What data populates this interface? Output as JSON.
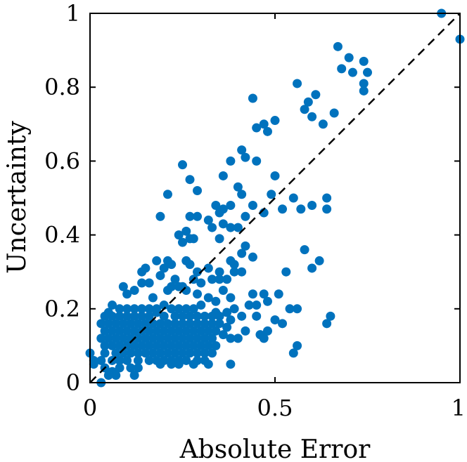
{
  "chart_data": {
    "type": "scatter",
    "title": "",
    "xlabel": "Absolute Error",
    "ylabel": "Uncertainty",
    "xlim": [
      0,
      1
    ],
    "ylim": [
      0,
      1
    ],
    "xticks": [
      0,
      0.5,
      1
    ],
    "xtick_labels": [
      "0",
      "0.5",
      "1"
    ],
    "yticks": [
      0,
      0.2,
      0.4,
      0.6,
      0.8,
      1
    ],
    "ytick_labels": [
      "0",
      "0.2",
      "0.4",
      "0.6",
      "0.8",
      "1"
    ],
    "grid": false,
    "box": true,
    "reference_line": {
      "style": "dashed",
      "color": "#000000",
      "from": [
        0,
        0
      ],
      "to": [
        1,
        1
      ]
    },
    "point_color": "#0072BD",
    "series": [
      {
        "points": [
          [
            0.95,
            1.0
          ],
          [
            1.0,
            0.93
          ],
          [
            0.67,
            0.91
          ],
          [
            0.7,
            0.88
          ],
          [
            0.74,
            0.87
          ],
          [
            0.75,
            0.84
          ],
          [
            0.71,
            0.84
          ],
          [
            0.68,
            0.85
          ],
          [
            0.74,
            0.81
          ],
          [
            0.74,
            0.79
          ],
          [
            0.56,
            0.81
          ],
          [
            0.61,
            0.78
          ],
          [
            0.59,
            0.76
          ],
          [
            0.66,
            0.73
          ],
          [
            0.58,
            0.74
          ],
          [
            0.63,
            0.7
          ],
          [
            0.6,
            0.72
          ],
          [
            0.47,
            0.7
          ],
          [
            0.5,
            0.71
          ],
          [
            0.45,
            0.69
          ],
          [
            0.48,
            0.68
          ],
          [
            0.44,
            0.77
          ],
          [
            0.45,
            0.6
          ],
          [
            0.41,
            0.63
          ],
          [
            0.42,
            0.61
          ],
          [
            0.25,
            0.59
          ],
          [
            0.38,
            0.6
          ],
          [
            0.36,
            0.56
          ],
          [
            0.5,
            0.56
          ],
          [
            0.4,
            0.53
          ],
          [
            0.41,
            0.51
          ],
          [
            0.49,
            0.51
          ],
          [
            0.27,
            0.55
          ],
          [
            0.29,
            0.52
          ],
          [
            0.21,
            0.51
          ],
          [
            0.55,
            0.5
          ],
          [
            0.64,
            0.5
          ],
          [
            0.6,
            0.48
          ],
          [
            0.44,
            0.48
          ],
          [
            0.38,
            0.48
          ],
          [
            0.36,
            0.47
          ],
          [
            0.42,
            0.45
          ],
          [
            0.47,
            0.46
          ],
          [
            0.52,
            0.47
          ],
          [
            0.57,
            0.47
          ],
          [
            0.64,
            0.47
          ],
          [
            0.35,
            0.46
          ],
          [
            0.34,
            0.48
          ],
          [
            0.29,
            0.45
          ],
          [
            0.27,
            0.45
          ],
          [
            0.19,
            0.45
          ],
          [
            0.32,
            0.44
          ],
          [
            0.36,
            0.43
          ],
          [
            0.38,
            0.42
          ],
          [
            0.4,
            0.42
          ],
          [
            0.33,
            0.42
          ],
          [
            0.26,
            0.41
          ],
          [
            0.24,
            0.4
          ],
          [
            0.27,
            0.39
          ],
          [
            0.28,
            0.39
          ],
          [
            0.35,
            0.39
          ],
          [
            0.25,
            0.38
          ],
          [
            0.42,
            0.37
          ],
          [
            0.41,
            0.35
          ],
          [
            0.44,
            0.34
          ],
          [
            0.38,
            0.33
          ],
          [
            0.39,
            0.32
          ],
          [
            0.58,
            0.36
          ],
          [
            0.62,
            0.33
          ],
          [
            0.6,
            0.31
          ],
          [
            0.35,
            0.3
          ],
          [
            0.32,
            0.31
          ],
          [
            0.29,
            0.3
          ],
          [
            0.27,
            0.32
          ],
          [
            0.21,
            0.33
          ],
          [
            0.22,
            0.32
          ],
          [
            0.26,
            0.33
          ],
          [
            0.18,
            0.33
          ],
          [
            0.15,
            0.31
          ],
          [
            0.14,
            0.3
          ],
          [
            0.2,
            0.31
          ],
          [
            0.19,
            0.29
          ],
          [
            0.23,
            0.28
          ],
          [
            0.28,
            0.28
          ],
          [
            0.33,
            0.28
          ],
          [
            0.35,
            0.28
          ],
          [
            0.37,
            0.28
          ],
          [
            0.39,
            0.3
          ],
          [
            0.41,
            0.3
          ],
          [
            0.53,
            0.3
          ],
          [
            0.3,
            0.27
          ],
          [
            0.25,
            0.26
          ],
          [
            0.24,
            0.26
          ],
          [
            0.22,
            0.26
          ],
          [
            0.16,
            0.27
          ],
          [
            0.14,
            0.27
          ],
          [
            0.12,
            0.25
          ],
          [
            0.09,
            0.26
          ],
          [
            0.1,
            0.24
          ],
          [
            0.17,
            0.23
          ],
          [
            0.21,
            0.25
          ],
          [
            0.26,
            0.25
          ],
          [
            0.29,
            0.24
          ],
          [
            0.32,
            0.23
          ],
          [
            0.34,
            0.22
          ],
          [
            0.36,
            0.25
          ],
          [
            0.38,
            0.23
          ],
          [
            0.44,
            0.24
          ],
          [
            0.47,
            0.24
          ],
          [
            0.51,
            0.24
          ],
          [
            0.56,
            0.2
          ],
          [
            0.54,
            0.2
          ],
          [
            0.48,
            0.22
          ],
          [
            0.45,
            0.21
          ],
          [
            0.43,
            0.21
          ],
          [
            0.39,
            0.2
          ],
          [
            0.37,
            0.19
          ],
          [
            0.34,
            0.19
          ],
          [
            0.3,
            0.21
          ],
          [
            0.28,
            0.2
          ],
          [
            0.26,
            0.2
          ],
          [
            0.24,
            0.2
          ],
          [
            0.22,
            0.2
          ],
          [
            0.2,
            0.21
          ],
          [
            0.18,
            0.2
          ],
          [
            0.16,
            0.2
          ],
          [
            0.14,
            0.2
          ],
          [
            0.12,
            0.2
          ],
          [
            0.1,
            0.2
          ],
          [
            0.08,
            0.2
          ],
          [
            0.06,
            0.21
          ],
          [
            0.05,
            0.19
          ],
          [
            0.04,
            0.18
          ],
          [
            0.06,
            0.18
          ],
          [
            0.08,
            0.18
          ],
          [
            0.1,
            0.18
          ],
          [
            0.12,
            0.18
          ],
          [
            0.14,
            0.18
          ],
          [
            0.16,
            0.18
          ],
          [
            0.18,
            0.19
          ],
          [
            0.2,
            0.18
          ],
          [
            0.23,
            0.18
          ],
          [
            0.25,
            0.18
          ],
          [
            0.27,
            0.18
          ],
          [
            0.29,
            0.18
          ],
          [
            0.31,
            0.18
          ],
          [
            0.33,
            0.18
          ],
          [
            0.35,
            0.18
          ],
          [
            0.38,
            0.17
          ],
          [
            0.41,
            0.18
          ],
          [
            0.45,
            0.18
          ],
          [
            0.5,
            0.17
          ],
          [
            0.52,
            0.16
          ],
          [
            0.65,
            0.18
          ],
          [
            0.64,
            0.16
          ],
          [
            0.03,
            0.16
          ],
          [
            0.05,
            0.16
          ],
          [
            0.07,
            0.16
          ],
          [
            0.09,
            0.16
          ],
          [
            0.11,
            0.16
          ],
          [
            0.13,
            0.16
          ],
          [
            0.15,
            0.16
          ],
          [
            0.17,
            0.16
          ],
          [
            0.19,
            0.16
          ],
          [
            0.21,
            0.16
          ],
          [
            0.23,
            0.16
          ],
          [
            0.25,
            0.16
          ],
          [
            0.27,
            0.16
          ],
          [
            0.29,
            0.16
          ],
          [
            0.31,
            0.16
          ],
          [
            0.33,
            0.16
          ],
          [
            0.35,
            0.16
          ],
          [
            0.37,
            0.15
          ],
          [
            0.42,
            0.14
          ],
          [
            0.48,
            0.14
          ],
          [
            0.47,
            0.12
          ],
          [
            0.04,
            0.14
          ],
          [
            0.06,
            0.14
          ],
          [
            0.08,
            0.14
          ],
          [
            0.1,
            0.14
          ],
          [
            0.12,
            0.14
          ],
          [
            0.14,
            0.14
          ],
          [
            0.16,
            0.14
          ],
          [
            0.18,
            0.14
          ],
          [
            0.2,
            0.14
          ],
          [
            0.22,
            0.14
          ],
          [
            0.24,
            0.14
          ],
          [
            0.26,
            0.14
          ],
          [
            0.28,
            0.14
          ],
          [
            0.3,
            0.14
          ],
          [
            0.32,
            0.14
          ],
          [
            0.34,
            0.14
          ],
          [
            0.36,
            0.13
          ],
          [
            0.38,
            0.12
          ],
          [
            0.4,
            0.12
          ],
          [
            0.46,
            0.13
          ],
          [
            0.03,
            0.12
          ],
          [
            0.05,
            0.12
          ],
          [
            0.07,
            0.12
          ],
          [
            0.09,
            0.12
          ],
          [
            0.11,
            0.12
          ],
          [
            0.13,
            0.12
          ],
          [
            0.15,
            0.12
          ],
          [
            0.17,
            0.12
          ],
          [
            0.19,
            0.12
          ],
          [
            0.21,
            0.12
          ],
          [
            0.23,
            0.12
          ],
          [
            0.25,
            0.12
          ],
          [
            0.27,
            0.12
          ],
          [
            0.29,
            0.12
          ],
          [
            0.31,
            0.12
          ],
          [
            0.33,
            0.12
          ],
          [
            0.04,
            0.1
          ],
          [
            0.06,
            0.1
          ],
          [
            0.08,
            0.1
          ],
          [
            0.1,
            0.1
          ],
          [
            0.12,
            0.1
          ],
          [
            0.14,
            0.1
          ],
          [
            0.16,
            0.1
          ],
          [
            0.18,
            0.1
          ],
          [
            0.2,
            0.1
          ],
          [
            0.22,
            0.1
          ],
          [
            0.24,
            0.1
          ],
          [
            0.26,
            0.1
          ],
          [
            0.28,
            0.1
          ],
          [
            0.3,
            0.1
          ],
          [
            0.32,
            0.1
          ],
          [
            0.34,
            0.1
          ],
          [
            0.56,
            0.1
          ],
          [
            0.55,
            0.08
          ],
          [
            0.04,
            0.08
          ],
          [
            0.07,
            0.08
          ],
          [
            0.09,
            0.08
          ],
          [
            0.11,
            0.08
          ],
          [
            0.13,
            0.08
          ],
          [
            0.15,
            0.08
          ],
          [
            0.17,
            0.08
          ],
          [
            0.19,
            0.08
          ],
          [
            0.21,
            0.08
          ],
          [
            0.23,
            0.08
          ],
          [
            0.25,
            0.08
          ],
          [
            0.27,
            0.08
          ],
          [
            0.29,
            0.08
          ],
          [
            0.31,
            0.08
          ],
          [
            0.33,
            0.08
          ],
          [
            0.0,
            0.08
          ],
          [
            0.01,
            0.06
          ],
          [
            0.03,
            0.06
          ],
          [
            0.06,
            0.06
          ],
          [
            0.08,
            0.06
          ],
          [
            0.1,
            0.06
          ],
          [
            0.13,
            0.06
          ],
          [
            0.16,
            0.06
          ],
          [
            0.18,
            0.06
          ],
          [
            0.2,
            0.06
          ],
          [
            0.22,
            0.06
          ],
          [
            0.24,
            0.06
          ],
          [
            0.26,
            0.06
          ],
          [
            0.29,
            0.06
          ],
          [
            0.31,
            0.06
          ],
          [
            0.19,
            0.05
          ],
          [
            0.22,
            0.05
          ],
          [
            0.24,
            0.05
          ],
          [
            0.28,
            0.05
          ],
          [
            0.32,
            0.05
          ],
          [
            0.38,
            0.05
          ],
          [
            0.01,
            0.05
          ],
          [
            0.04,
            0.04
          ],
          [
            0.06,
            0.03
          ],
          [
            0.08,
            0.04
          ],
          [
            0.11,
            0.04
          ],
          [
            0.13,
            0.04
          ],
          [
            0.05,
            0.02
          ],
          [
            0.07,
            0.02
          ],
          [
            0.12,
            0.02
          ],
          [
            0.03,
            0.0
          ]
        ]
      }
    ]
  }
}
